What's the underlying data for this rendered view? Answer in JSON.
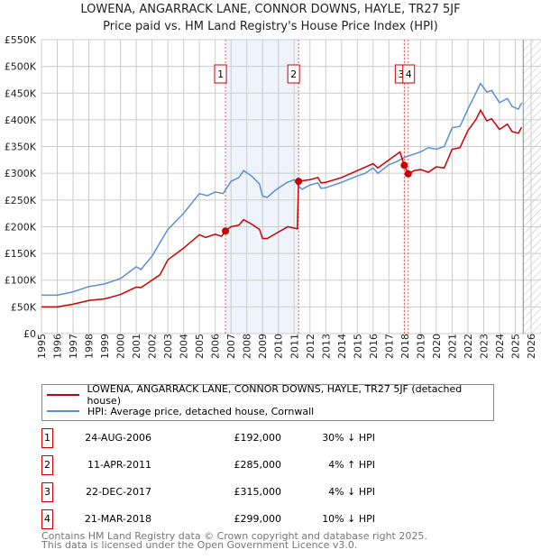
{
  "title": "LOWENA, ANGARRACK LANE, CONNOR DOWNS, HAYLE, TR27 5JF",
  "subtitle": "Price paid vs. HM Land Registry's House Price Index (HPI)",
  "chart_data": {
    "type": "line",
    "title": "LOWENA, ANGARRACK LANE, CONNOR DOWNS, HAYLE, TR27 5JF",
    "xlim": [
      1995,
      2026
    ],
    "ylim": [
      0,
      550000
    ],
    "x_ticks": [
      "1995",
      "1996",
      "1997",
      "1998",
      "1999",
      "2000",
      "2001",
      "2002",
      "2003",
      "2004",
      "2005",
      "2006",
      "2007",
      "2008",
      "2009",
      "2010",
      "2011",
      "2012",
      "2013",
      "2014",
      "2015",
      "2016",
      "2017",
      "2018",
      "2019",
      "2020",
      "2021",
      "2022",
      "2023",
      "2024",
      "2025",
      "2026"
    ],
    "y_ticks": [
      {
        "v": 0,
        "label": "£0"
      },
      {
        "v": 50000,
        "label": "£50K"
      },
      {
        "v": 100000,
        "label": "£100K"
      },
      {
        "v": 150000,
        "label": "£150K"
      },
      {
        "v": 200000,
        "label": "£200K"
      },
      {
        "v": 250000,
        "label": "£250K"
      },
      {
        "v": 300000,
        "label": "£300K"
      },
      {
        "v": 350000,
        "label": "£350K"
      },
      {
        "v": 400000,
        "label": "£400K"
      },
      {
        "v": 450000,
        "label": "£450K"
      },
      {
        "v": 500000,
        "label": "£500K"
      },
      {
        "v": 550000,
        "label": "£550K"
      }
    ],
    "grid": true,
    "legend_placement": "below",
    "series": [
      {
        "name": "LOWENA, ANGARRACK LANE, CONNOR DOWNS, HAYLE, TR27 5JF (detached house)",
        "color": "#cc0000",
        "x": [
          1995,
          1996,
          1997,
          1998,
          1999,
          2000,
          2001,
          2001.3,
          2002,
          2002.5,
          2003,
          2004,
          2005,
          2005.4,
          2006,
          2006.4,
          2006.65,
          2007,
          2007.5,
          2007.8,
          2008.3,
          2008.8,
          2009,
          2009.3,
          2010,
          2010.6,
          2011.2,
          2011.28,
          2012,
          2012.5,
          2012.7,
          2013,
          2014,
          2015,
          2016,
          2016.3,
          2017,
          2017.7,
          2017.97,
          2018.22,
          2018.6,
          2019,
          2019.5,
          2020,
          2020.5,
          2021,
          2021.5,
          2022,
          2022.5,
          2022.8,
          2023.2,
          2023.5,
          2024,
          2024.5,
          2024.8,
          2025.2,
          2025.4
        ],
        "y": [
          50000,
          50000,
          55000,
          62000,
          65000,
          73000,
          87000,
          86000,
          100000,
          110000,
          138000,
          160000,
          185000,
          180000,
          186000,
          182000,
          192000,
          200000,
          203000,
          213000,
          205000,
          195000,
          178000,
          178000,
          190000,
          200000,
          196000,
          285000,
          288000,
          292000,
          282000,
          283000,
          292000,
          305000,
          318000,
          310000,
          325000,
          340000,
          315000,
          299000,
          305000,
          307000,
          302000,
          312000,
          310000,
          345000,
          348000,
          380000,
          400000,
          418000,
          398000,
          402000,
          382000,
          392000,
          378000,
          375000,
          386000
        ]
      },
      {
        "name": "HPI: Average price, detached house, Cornwall",
        "color": "#5b8fd4",
        "x": [
          1995,
          1996,
          1997,
          1998,
          1999,
          2000,
          2001,
          2001.3,
          2002,
          2003,
          2004,
          2005,
          2005.5,
          2006,
          2006.5,
          2007,
          2007.5,
          2007.8,
          2008.3,
          2008.8,
          2009,
          2009.3,
          2009.8,
          2010.5,
          2011,
          2011.3,
          2011.5,
          2012,
          2012.5,
          2012.7,
          2013,
          2014,
          2015,
          2015.5,
          2016,
          2016.3,
          2017,
          2017.5,
          2018,
          2018.5,
          2019,
          2019.5,
          2020,
          2020.5,
          2021,
          2021.5,
          2022,
          2022.5,
          2022.8,
          2023.2,
          2023.5,
          2024,
          2024.5,
          2024.8,
          2025.2,
          2025.4
        ],
        "y": [
          72000,
          72000,
          78000,
          88000,
          93000,
          103000,
          125000,
          120000,
          145000,
          195000,
          225000,
          262000,
          258000,
          265000,
          262000,
          285000,
          292000,
          305000,
          295000,
          280000,
          257000,
          255000,
          268000,
          282000,
          288000,
          275000,
          270000,
          278000,
          282000,
          272000,
          273000,
          283000,
          295000,
          300000,
          310000,
          300000,
          316000,
          322000,
          330000,
          335000,
          340000,
          348000,
          345000,
          350000,
          385000,
          388000,
          420000,
          450000,
          468000,
          452000,
          455000,
          432000,
          440000,
          425000,
          420000,
          432000
        ]
      }
    ],
    "sales": [
      {
        "n": "1",
        "x": 2006.65,
        "y": 192000
      },
      {
        "n": "2",
        "x": 2011.28,
        "y": 285000
      },
      {
        "n": "3",
        "x": 2017.97,
        "y": 315000
      },
      {
        "n": "4",
        "x": 2018.22,
        "y": 299000
      }
    ],
    "shaded_range": [
      2006.65,
      2011.28
    ],
    "forecast_hatch_from": 2025.5
  },
  "legend": {
    "red": "LOWENA, ANGARRACK LANE, CONNOR DOWNS, HAYLE, TR27 5JF (detached house)",
    "blue": "HPI: Average price, detached house, Cornwall"
  },
  "transactions": [
    {
      "n": "1",
      "date": "24-AUG-2006",
      "price": "£192,000",
      "hpi": "30% ↓ HPI"
    },
    {
      "n": "2",
      "date": "11-APR-2011",
      "price": "£285,000",
      "hpi": "4% ↑ HPI"
    },
    {
      "n": "3",
      "date": "22-DEC-2017",
      "price": "£315,000",
      "hpi": "4% ↓ HPI"
    },
    {
      "n": "4",
      "date": "21-MAR-2018",
      "price": "£299,000",
      "hpi": "10% ↓ HPI"
    }
  ],
  "footer": {
    "line1": "Contains HM Land Registry data © Crown copyright and database right 2025.",
    "line2": "This data is licensed under the Open Government Licence v3.0."
  }
}
